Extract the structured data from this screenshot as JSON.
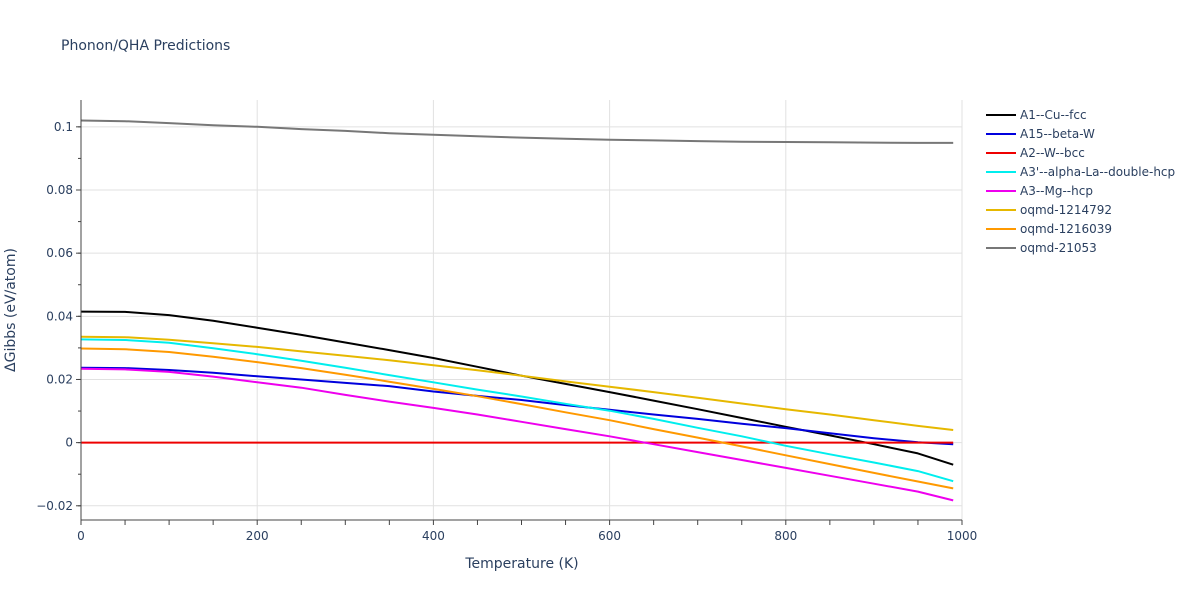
{
  "chart_data": {
    "type": "line",
    "title": "Phonon/QHA Predictions",
    "xlabel": "Temperature (K)",
    "ylabel": "ΔGibbs (eV/atom)",
    "xlim": [
      0,
      1000
    ],
    "ylim": [
      -0.0245,
      0.1085
    ],
    "x_ticks": [
      0,
      200,
      400,
      600,
      800,
      1000
    ],
    "x_tick_labels": [
      "0",
      "200",
      "400",
      "600",
      "800",
      "1000"
    ],
    "y_ticks": [
      -0.02,
      0,
      0.02,
      0.04,
      0.06,
      0.08,
      0.1
    ],
    "y_tick_labels": [
      "−0.02",
      "0",
      "0.02",
      "0.04",
      "0.06",
      "0.08",
      "0.1"
    ],
    "grid": true,
    "legend_position": "right",
    "x": [
      0,
      50,
      100,
      150,
      200,
      250,
      300,
      350,
      400,
      450,
      500,
      550,
      600,
      650,
      700,
      750,
      800,
      850,
      900,
      950,
      990
    ],
    "series": [
      {
        "name": "A1--Cu--fcc",
        "color": "#000000",
        "values": [
          0.0415,
          0.0414,
          0.0404,
          0.0386,
          0.0364,
          0.0341,
          0.0317,
          0.0293,
          0.0268,
          0.024,
          0.0212,
          0.0186,
          0.016,
          0.0133,
          0.0106,
          0.0078,
          0.005,
          0.0023,
          -0.0005,
          -0.0034,
          -0.007
        ]
      },
      {
        "name": "A15--beta-W",
        "color": "#0000dd",
        "values": [
          0.0237,
          0.0236,
          0.023,
          0.0221,
          0.021,
          0.02,
          0.0189,
          0.0179,
          0.0162,
          0.0148,
          0.0135,
          0.0119,
          0.0104,
          0.0089,
          0.0075,
          0.006,
          0.0046,
          0.003,
          0.0014,
          0.0001,
          -0.0005
        ]
      },
      {
        "name": "A2--W--bcc",
        "color": "#ee0000",
        "values": [
          0,
          0,
          0,
          0,
          0,
          0,
          0,
          0,
          0,
          0,
          0,
          0,
          0,
          0,
          0,
          0,
          0,
          0,
          0,
          0,
          0
        ]
      },
      {
        "name": "A3'--alpha-La--double-hcp",
        "color": "#00eeee",
        "values": [
          0.0327,
          0.0325,
          0.0316,
          0.0299,
          0.028,
          0.0259,
          0.0237,
          0.0214,
          0.0191,
          0.0168,
          0.0146,
          0.0123,
          0.0101,
          0.0075,
          0.0047,
          0.002,
          -0.001,
          -0.0037,
          -0.0063,
          -0.009,
          -0.0122
        ]
      },
      {
        "name": "A3--Mg--hcp",
        "color": "#ee00ee",
        "values": [
          0.0234,
          0.0232,
          0.0224,
          0.0209,
          0.0191,
          0.0174,
          0.0151,
          0.013,
          0.011,
          0.0089,
          0.0066,
          0.0043,
          0.002,
          -0.0005,
          -0.003,
          -0.0055,
          -0.008,
          -0.0105,
          -0.013,
          -0.0155,
          -0.0183
        ]
      },
      {
        "name": "oqmd-1214792",
        "color": "#e6b800",
        "values": [
          0.0335,
          0.0334,
          0.0326,
          0.0315,
          0.0303,
          0.0289,
          0.0275,
          0.0261,
          0.0245,
          0.0229,
          0.0212,
          0.0194,
          0.0177,
          0.016,
          0.0142,
          0.0124,
          0.0106,
          0.0089,
          0.0071,
          0.0053,
          0.004
        ]
      },
      {
        "name": "oqmd-1216039",
        "color": "#ff9900",
        "values": [
          0.0298,
          0.0296,
          0.0287,
          0.0272,
          0.0255,
          0.0236,
          0.0215,
          0.0193,
          0.017,
          0.0147,
          0.0122,
          0.0096,
          0.0071,
          0.0043,
          0.0016,
          -0.0012,
          -0.004,
          -0.0068,
          -0.0096,
          -0.0123,
          -0.0145
        ]
      },
      {
        "name": "oqmd-21053",
        "color": "#777777",
        "values": [
          0.102,
          0.1018,
          0.1012,
          0.1005,
          0.1,
          0.0993,
          0.0987,
          0.098,
          0.0975,
          0.097,
          0.0966,
          0.0962,
          0.0959,
          0.0957,
          0.0955,
          0.0953,
          0.0952,
          0.0951,
          0.095,
          0.0949,
          0.0949
        ]
      }
    ]
  }
}
